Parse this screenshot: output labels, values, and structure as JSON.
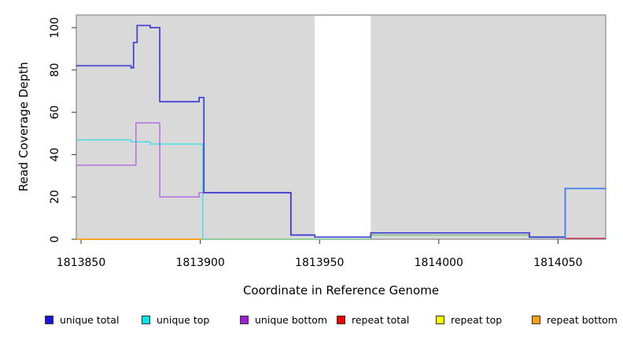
{
  "axes": {
    "x_label": "Coordinate in Reference Genome",
    "y_label": "Read Coverage Depth",
    "x_ticks": [
      1813850,
      1813900,
      1813950,
      1814000,
      1814050
    ],
    "y_ticks": [
      0,
      20,
      40,
      60,
      80,
      100
    ]
  },
  "legend": [
    {
      "label": "unique total",
      "color": "#1515E0"
    },
    {
      "label": "unique top",
      "color": "#00E5E5"
    },
    {
      "label": "unique bottom",
      "color": "#9A20D0"
    },
    {
      "label": "repeat total",
      "color": "#EE0000"
    },
    {
      "label": "repeat top",
      "color": "#FFFF00"
    },
    {
      "label": "repeat bottom",
      "color": "#FFA010"
    }
  ],
  "chart_data": {
    "type": "line",
    "style": "step",
    "title": "",
    "xlabel": "Coordinate in Reference Genome",
    "ylabel": "Read Coverage Depth",
    "xlim": [
      1813848,
      1814070
    ],
    "ylim": [
      0,
      106
    ],
    "grid": false,
    "legend_position": "bottom",
    "plot_background": "#D9D9D9",
    "box_color": "#777777",
    "tick_color": "#333333",
    "no_data_region": {
      "x_start": 1813948,
      "x_end": 1813971.5,
      "color": "#FFFFFF"
    },
    "series": [
      {
        "name": "repeat top",
        "color": "#FFE000",
        "width": 1.6,
        "opacity": 1,
        "points": [
          [
            1813848,
            0
          ],
          [
            1813903,
            0
          ]
        ]
      },
      {
        "name": "repeat bottom",
        "color": "#FF9C1E",
        "width": 1.8,
        "opacity": 1,
        "points": [
          [
            1813848,
            0
          ],
          [
            1813903,
            0
          ]
        ]
      },
      {
        "name": "unique top + repeat top overlap",
        "color": "#7CC47C",
        "width": 1.5,
        "opacity": 1,
        "points": [
          [
            1813903,
            0
          ],
          [
            1813971.5,
            0
          ],
          [
            1813971.5,
            2
          ],
          [
            1814038,
            2
          ],
          [
            1814038,
            1
          ],
          [
            1814053,
            1
          ]
        ]
      },
      {
        "name": "repeat total",
        "color": "#D94768",
        "width": 1.5,
        "opacity": 1,
        "points": [
          [
            1814053,
            0.5
          ],
          [
            1814070,
            0.5
          ]
        ]
      },
      {
        "name": "unique top",
        "color": "#46E0E6",
        "width": 1.5,
        "opacity": 1,
        "points": [
          [
            1813848,
            47
          ],
          [
            1813871,
            47
          ],
          [
            1813871,
            46
          ],
          [
            1813879,
            46
          ],
          [
            1813879,
            45
          ],
          [
            1813901,
            45
          ],
          [
            1813901,
            0
          ],
          [
            1813903,
            0
          ]
        ]
      },
      {
        "name": "unique bottom",
        "color": "#B273DE",
        "width": 1.5,
        "opacity": 1,
        "points": [
          [
            1813848,
            35
          ],
          [
            1813873,
            35
          ],
          [
            1813873,
            55
          ],
          [
            1813883,
            55
          ],
          [
            1813883,
            20
          ],
          [
            1813899.5,
            20
          ],
          [
            1813899.5,
            22
          ],
          [
            1813938,
            22
          ],
          [
            1813938,
            2
          ],
          [
            1813948,
            2
          ]
        ]
      },
      {
        "name": "unique total",
        "color": "#2B2BD0",
        "width": 1.8,
        "opacity": 0.85,
        "points": [
          [
            1813848,
            82
          ],
          [
            1813871,
            82
          ],
          [
            1813871,
            81
          ],
          [
            1813872,
            81
          ],
          [
            1813872,
            93
          ],
          [
            1813873.5,
            93
          ],
          [
            1813873.5,
            101
          ],
          [
            1813879,
            101
          ],
          [
            1813879,
            100
          ],
          [
            1813883,
            100
          ],
          [
            1813883,
            65
          ],
          [
            1813899.5,
            65
          ],
          [
            1813899.5,
            67
          ],
          [
            1813901.5,
            67
          ],
          [
            1813901.5,
            22
          ],
          [
            1813938,
            22
          ],
          [
            1813938,
            2
          ],
          [
            1813948,
            2
          ],
          [
            1813948,
            1
          ],
          [
            1813971.5,
            1
          ],
          [
            1813971.5,
            3
          ],
          [
            1814038,
            3
          ],
          [
            1814038,
            1
          ],
          [
            1814053,
            1
          ]
        ]
      },
      {
        "name": "unique total + unique top overlap",
        "color": "#3B7BF2",
        "width": 1.8,
        "opacity": 1,
        "points": [
          [
            1814053,
            0.5
          ],
          [
            1814053,
            24
          ],
          [
            1814070,
            24
          ]
        ]
      }
    ]
  },
  "legend_layout_lefts": [
    57,
    180,
    305,
    428,
    554,
    676
  ]
}
